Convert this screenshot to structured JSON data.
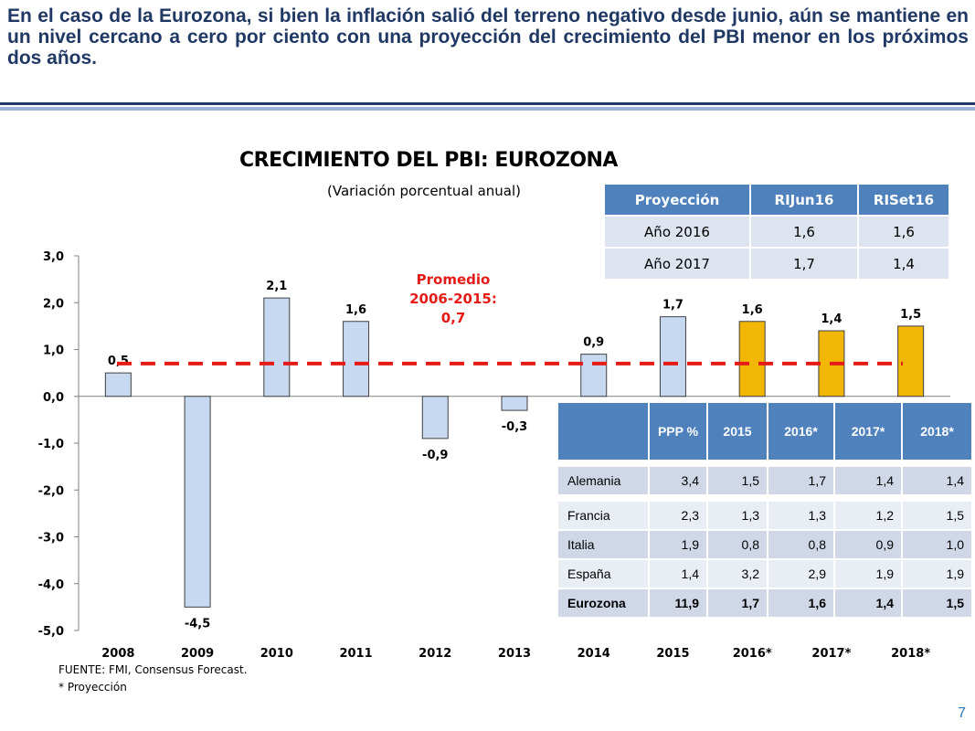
{
  "header": {
    "text": "En el caso de la Eurozona, si bien la inflación salió del terreno negativo desde junio, aún se mantiene en un nivel cercano a cero por ciento con una proyección del crecimiento del PBI menor en los próximos dos años."
  },
  "chart_data": {
    "type": "bar",
    "title": "CRECIMIENTO DEL PBI: EUROZONA",
    "subtitle": "(Variación porcentual anual)",
    "categories": [
      "2008",
      "2009",
      "2010",
      "2011",
      "2012",
      "2013",
      "2014",
      "2015",
      "2016*",
      "2017*",
      "2018*"
    ],
    "values": [
      0.5,
      -4.5,
      2.1,
      1.6,
      -0.9,
      -0.3,
      0.9,
      1.7,
      1.6,
      1.4,
      1.5
    ],
    "value_labels": [
      "0,5",
      "-4,5",
      "2,1",
      "1,6",
      "-0,9",
      "-0,3",
      "0,9",
      "1,7",
      "1,6",
      "1,4",
      "1,5"
    ],
    "projected": [
      false,
      false,
      false,
      false,
      false,
      false,
      false,
      false,
      true,
      true,
      true
    ],
    "ylim": [
      -5,
      3
    ],
    "yticks": [
      "3,0",
      "2,0",
      "1,0",
      "0,0",
      "-1,0",
      "-2,0",
      "-3,0",
      "-4,0",
      "-5,0"
    ],
    "ytick_values": [
      3,
      2,
      1,
      0,
      -1,
      -2,
      -3,
      -4,
      -5
    ],
    "average_line": {
      "value": 0.7,
      "label_lines": [
        "Promedio",
        "2006-2015:",
        "0,7"
      ]
    },
    "colors": {
      "actual": "#c6d9f1",
      "projected": "#f2b705",
      "average": "#e41b17",
      "bar_border": "#404040"
    },
    "grid": false,
    "legend": "none"
  },
  "projection_table": {
    "headers": [
      "Proyección",
      "RIJun16",
      "RISet16"
    ],
    "rows": [
      [
        "Año 2016",
        "1,6",
        "1,6"
      ],
      [
        "Año 2017",
        "1,7",
        "1,4"
      ]
    ]
  },
  "ppp_table": {
    "headers": [
      "",
      "PPP %",
      "2015",
      "2016*",
      "2017*",
      "2018*"
    ],
    "rows": [
      [
        "Alemania",
        "3,4",
        "1,5",
        "1,7",
        "1,4",
        "1,4"
      ],
      [
        "Francia",
        "2,3",
        "1,3",
        "1,3",
        "1,2",
        "1,5"
      ],
      [
        "Italia",
        "1,9",
        "0,8",
        "0,8",
        "0,9",
        "1,0"
      ],
      [
        "España",
        "1,4",
        "3,2",
        "2,9",
        "1,9",
        "1,9"
      ],
      [
        "Eurozona",
        "11,9",
        "1,7",
        "1,6",
        "1,4",
        "1,5"
      ]
    ]
  },
  "footer": {
    "source": "FUENTE: FMI, Consensus Forecast.",
    "note": "* Proyección",
    "page_number": "7"
  }
}
